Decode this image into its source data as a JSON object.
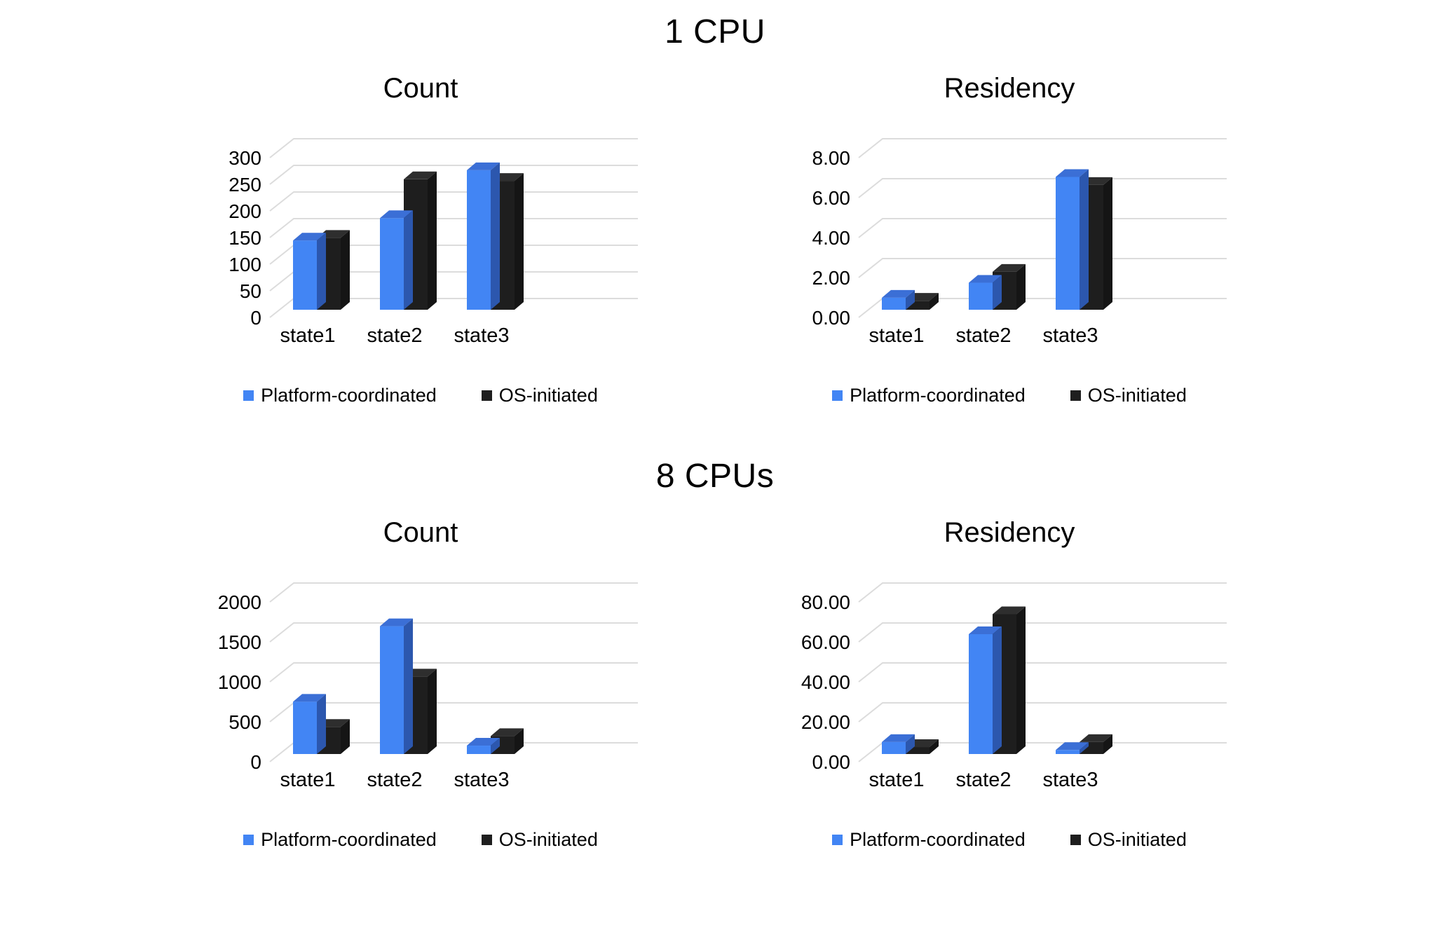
{
  "sections": [
    {
      "title": "1 CPU"
    },
    {
      "title": "8 CPUs"
    }
  ],
  "colors": {
    "platform_coordinated": "#4285f4",
    "os_initiated": "#1e1e1e",
    "gridline": "#dcdcdc",
    "text": "#000000",
    "background": "#ffffff"
  },
  "chart_data": [
    {
      "type": "bar",
      "style": "3d-column",
      "section": "1 CPU",
      "title": "Count",
      "categories": [
        "state1",
        "state2",
        "state3"
      ],
      "series": [
        {
          "name": "Platform-coordinated",
          "color": "#4285f4",
          "color_top": "#3b6fd6",
          "color_side": "#2c57ae",
          "values": [
            130,
            172,
            262
          ]
        },
        {
          "name": "OS-initiated",
          "color": "#1e1e1e",
          "color_top": "#2e2e2e",
          "color_side": "#151515",
          "values": [
            135,
            245,
            242
          ]
        }
      ],
      "ylim": [
        0,
        300
      ],
      "ytick_step": 50,
      "ytick_decimals": 0,
      "grid": true,
      "legend_position": "bottom"
    },
    {
      "type": "bar",
      "style": "3d-column",
      "section": "1 CPU",
      "title": "Residency",
      "categories": [
        "state1",
        "state2",
        "state3"
      ],
      "series": [
        {
          "name": "Platform-coordinated",
          "color": "#4285f4",
          "color_top": "#3b6fd6",
          "color_side": "#2c57ae",
          "values": [
            0.6,
            1.35,
            6.65
          ]
        },
        {
          "name": "OS-initiated",
          "color": "#1e1e1e",
          "color_top": "#2e2e2e",
          "color_side": "#151515",
          "values": [
            0.45,
            1.9,
            6.25
          ]
        }
      ],
      "ylim": [
        0,
        8
      ],
      "ytick_step": 2,
      "ytick_decimals": 2,
      "grid": true,
      "legend_position": "bottom"
    },
    {
      "type": "bar",
      "style": "3d-column",
      "section": "8 CPUs",
      "title": "Count",
      "categories": [
        "state1",
        "state2",
        "state3"
      ],
      "series": [
        {
          "name": "Platform-coordinated",
          "color": "#4285f4",
          "color_top": "#3b6fd6",
          "color_side": "#2c57ae",
          "values": [
            655,
            1600,
            105
          ]
        },
        {
          "name": "OS-initiated",
          "color": "#1e1e1e",
          "color_top": "#2e2e2e",
          "color_side": "#151515",
          "values": [
            340,
            970,
            225
          ]
        }
      ],
      "ylim": [
        0,
        2000
      ],
      "ytick_step": 500,
      "ytick_decimals": 0,
      "grid": true,
      "legend_position": "bottom"
    },
    {
      "type": "bar",
      "style": "3d-column",
      "section": "8 CPUs",
      "title": "Residency",
      "categories": [
        "state1",
        "state2",
        "state3"
      ],
      "series": [
        {
          "name": "Platform-coordinated",
          "color": "#4285f4",
          "color_top": "#3b6fd6",
          "color_side": "#2c57ae",
          "values": [
            6,
            60,
            2
          ]
        },
        {
          "name": "OS-initiated",
          "color": "#1e1e1e",
          "color_top": "#2e2e2e",
          "color_side": "#151515",
          "values": [
            3.5,
            70,
            6
          ]
        }
      ],
      "ylim": [
        0,
        80
      ],
      "ytick_step": 20,
      "ytick_decimals": 2,
      "grid": true,
      "legend_position": "bottom"
    }
  ]
}
